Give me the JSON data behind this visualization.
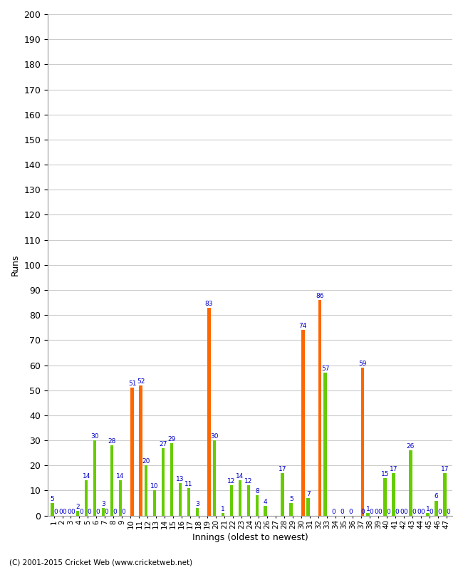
{
  "xlabel": "Innings (oldest to newest)",
  "ylabel": "Runs",
  "ylim": [
    0,
    200
  ],
  "yticks": [
    0,
    10,
    20,
    30,
    40,
    50,
    60,
    70,
    80,
    90,
    100,
    110,
    120,
    130,
    140,
    150,
    160,
    170,
    180,
    190,
    200
  ],
  "innings": [
    1,
    2,
    3,
    4,
    5,
    6,
    7,
    8,
    9,
    10,
    11,
    12,
    13,
    14,
    15,
    16,
    17,
    18,
    19,
    20,
    21,
    22,
    23,
    24,
    25,
    26,
    27,
    28,
    29,
    30,
    31,
    32,
    33,
    34,
    35,
    36,
    37,
    38,
    39,
    40,
    41,
    42,
    43,
    44,
    45,
    46,
    47
  ],
  "green_data": [
    5,
    0,
    0,
    2,
    14,
    30,
    3,
    28,
    14,
    0,
    0,
    20,
    10,
    27,
    29,
    13,
    11,
    3,
    0,
    30,
    1,
    12,
    14,
    12,
    8,
    4,
    0,
    17,
    5,
    0,
    7,
    0,
    57,
    0,
    0,
    0,
    0,
    1,
    0,
    15,
    17,
    0,
    26,
    0,
    1,
    6,
    17
  ],
  "orange_data": [
    0,
    0,
    0,
    0,
    0,
    0,
    0,
    0,
    0,
    51,
    52,
    0,
    0,
    0,
    0,
    0,
    0,
    0,
    83,
    0,
    0,
    0,
    0,
    0,
    0,
    0,
    0,
    0,
    0,
    74,
    0,
    86,
    0,
    0,
    0,
    0,
    59,
    0,
    0,
    0,
    0,
    0,
    0,
    0,
    0,
    0,
    0
  ],
  "bar_color_green": "#66cc00",
  "bar_color_orange": "#ff6600",
  "background_color": "#ffffff",
  "grid_color": "#cccccc",
  "label_color": "#0000cc",
  "label_fontsize": 6.5,
  "axis_fontsize": 9,
  "tick_fontsize": 7.5,
  "copyright": "(C) 2001-2015 Cricket Web (www.cricketweb.net)"
}
